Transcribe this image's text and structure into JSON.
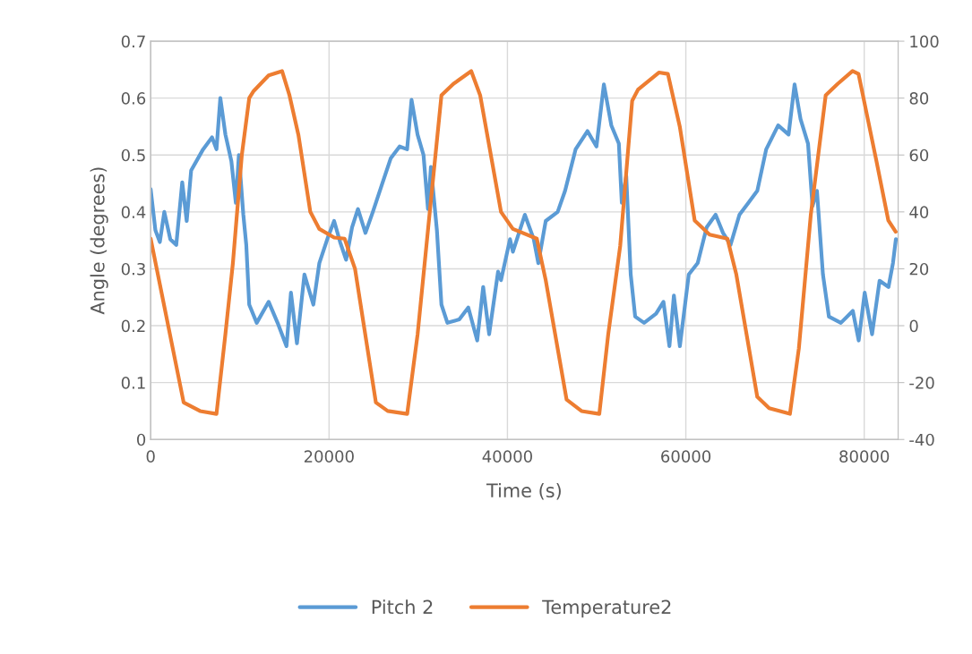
{
  "chart_data": {
    "type": "line",
    "xlabel": "Time (s)",
    "ylabel": "Angle (degrees)",
    "xlim": [
      0,
      83800
    ],
    "xticks": [
      0,
      20000,
      40000,
      60000,
      80000
    ],
    "ylim": [
      0,
      0.7
    ],
    "yticks": [
      0,
      0.1,
      0.2,
      0.3,
      0.4,
      0.5,
      0.6,
      0.7
    ],
    "y2lim": [
      -40,
      100
    ],
    "y2ticks": [
      -40,
      -20,
      0,
      20,
      40,
      60,
      80,
      100
    ],
    "grid": true,
    "legend": "bottom",
    "series": [
      {
        "name": "Pitch 2",
        "color": "#5b9bd5",
        "x": [
          0,
          530,
          1030,
          1530,
          2200,
          2870,
          3540,
          4040,
          4540,
          5880,
          6880,
          7380,
          7810,
          8380,
          9050,
          9550,
          9890,
          10390,
          10720,
          11050,
          11890,
          13230,
          14230,
          15230,
          15730,
          16400,
          17240,
          18240,
          18910,
          19910,
          20570,
          21240,
          21910,
          22580,
          23240,
          24080,
          24910,
          25910,
          26910,
          27910,
          28750,
          29250,
          29920,
          30590,
          31090,
          31420,
          32090,
          32600,
          33270,
          34600,
          35610,
          36610,
          37280,
          37950,
          38950,
          39280,
          40290,
          40610,
          41950,
          42950,
          43460,
          44290,
          45630,
          46460,
          47640,
          48970,
          49980,
          50810,
          51650,
          52490,
          52820,
          53320,
          53820,
          54320,
          55320,
          56660,
          57490,
          58160,
          58660,
          59330,
          60330,
          61330,
          62340,
          63340,
          64170,
          65010,
          66010,
          67010,
          68010,
          69010,
          70350,
          71520,
          72190,
          72860,
          73700,
          74200,
          74700,
          75370,
          76040,
          77380,
          78720,
          79380,
          80050,
          80880,
          81720,
          82720,
          83220,
          83550
        ],
        "values": [
          0.44,
          0.368,
          0.347,
          0.4,
          0.352,
          0.342,
          0.452,
          0.384,
          0.473,
          0.51,
          0.531,
          0.51,
          0.6,
          0.536,
          0.489,
          0.416,
          0.5,
          0.395,
          0.342,
          0.237,
          0.205,
          0.242,
          0.205,
          0.164,
          0.258,
          0.169,
          0.29,
          0.237,
          0.31,
          0.357,
          0.384,
          0.347,
          0.316,
          0.373,
          0.405,
          0.363,
          0.4,
          0.447,
          0.494,
          0.515,
          0.51,
          0.597,
          0.536,
          0.5,
          0.405,
          0.479,
          0.368,
          0.237,
          0.205,
          0.211,
          0.232,
          0.174,
          0.268,
          0.185,
          0.295,
          0.28,
          0.352,
          0.33,
          0.395,
          0.352,
          0.31,
          0.384,
          0.4,
          0.437,
          0.51,
          0.542,
          0.515,
          0.624,
          0.552,
          0.52,
          0.416,
          0.463,
          0.29,
          0.216,
          0.205,
          0.221,
          0.242,
          0.164,
          0.253,
          0.164,
          0.29,
          0.31,
          0.373,
          0.395,
          0.363,
          0.342,
          0.395,
          0.416,
          0.437,
          0.51,
          0.552,
          0.536,
          0.624,
          0.563,
          0.52,
          0.41,
          0.437,
          0.29,
          0.216,
          0.205,
          0.226,
          0.174,
          0.258,
          0.185,
          0.279,
          0.268,
          0.31,
          0.352
        ]
      },
      {
        "name": "Temperature2",
        "color": "#ed7d31",
        "axis": "y2",
        "x": [
          0,
          3700,
          5540,
          7380,
          8380,
          9220,
          10220,
          11050,
          11550,
          13230,
          14730,
          15560,
          16570,
          17900,
          18910,
          20570,
          21740,
          22910,
          25250,
          26580,
          28760,
          29930,
          31260,
          32600,
          33940,
          35940,
          36940,
          39280,
          40610,
          43290,
          44290,
          46630,
          48300,
          50300,
          51300,
          52640,
          53980,
          54640,
          56980,
          57990,
          59320,
          60990,
          62660,
          64660,
          65660,
          68010,
          69340,
          71670,
          72670,
          74010,
          75680,
          77020,
          78690,
          79360,
          81360,
          82700,
          83530
        ],
        "values": [
          30.6,
          -27,
          -30,
          -31,
          -3,
          22,
          60,
          80,
          82.5,
          88,
          89.5,
          81,
          67,
          40,
          34,
          31,
          30.6,
          20,
          -27,
          -30,
          -31,
          -3,
          39,
          81,
          85,
          89.5,
          81,
          40,
          34,
          30.6,
          16,
          -26,
          -30,
          -31,
          -3,
          28,
          79,
          83,
          89,
          88.5,
          70,
          37,
          32,
          30.6,
          18,
          -25,
          -29,
          -31,
          -8,
          39,
          81,
          85,
          89.5,
          88.5,
          58,
          37,
          33
        ]
      }
    ]
  }
}
